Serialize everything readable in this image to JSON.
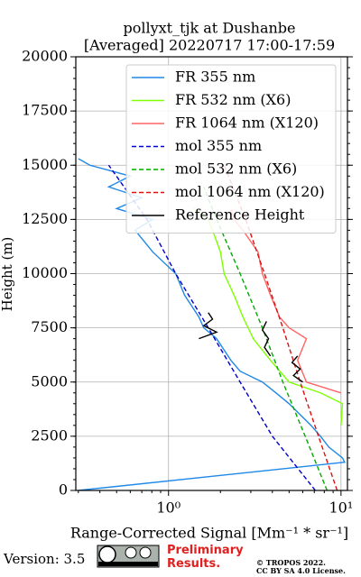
{
  "chart_data": {
    "type": "line",
    "title": "pollyxt_tjk at Dushanbe",
    "subtitle": "[Averaged] 20220717 17:00-17:59",
    "x_label": "Range-Corrected Signal [Mm⁻¹ * sr⁻¹]",
    "y_label": "Height (m)",
    "xlim": [
      0.29,
      10.9
    ],
    "ylim": [
      0,
      20000
    ],
    "log_x": true,
    "grid": true,
    "legend": "upper right",
    "xticks": [
      {
        "value": 1,
        "label": "10⁰"
      },
      {
        "value": 10,
        "label": "10¹"
      }
    ],
    "yticks": [
      0,
      2500,
      5000,
      7500,
      10000,
      12500,
      15000,
      17500,
      20000
    ],
    "series": [
      {
        "name": "FR 355 nm",
        "color": "#1f88e8",
        "linestyle": "solid",
        "x": [
          0.3,
          10.5,
          10.2,
          8.5,
          7.6,
          6.7,
          5.0,
          4.2,
          3.5,
          2.6,
          2.3,
          1.9,
          1.6,
          1.5,
          1.24,
          1.1,
          0.81,
          0.64,
          0.81,
          0.5,
          0.7,
          0.45,
          0.6,
          0.35,
          0.3
        ],
        "y": [
          0,
          1300,
          1500,
          2000,
          2500,
          3000,
          4000,
          4500,
          5000,
          5500,
          6000,
          7000,
          7500,
          8000,
          9000,
          10000,
          11000,
          12000,
          12500,
          13000,
          13500,
          14000,
          14500,
          15000,
          15300
        ]
      },
      {
        "name": "FR 532 nm (X6)",
        "color": "#7fff00",
        "linestyle": "solid",
        "x": [
          10.0,
          10.2,
          7.6,
          5.0,
          3.9,
          3.1,
          2.7,
          2.4,
          2.1,
          2.0,
          1.8,
          1.7,
          1.4
        ],
        "y": [
          3000,
          4000,
          4500,
          5000,
          6000,
          7000,
          8000,
          9000,
          10000,
          11000,
          12000,
          12500,
          13000
        ]
      },
      {
        "name": "FR 1064 nm (X120)",
        "color": "#ff6464",
        "linestyle": "solid",
        "x": [
          10.0,
          6.3,
          5.6,
          6.3,
          5.0,
          4.4,
          3.9,
          3.5,
          3.3,
          2.7,
          2.4,
          2.3
        ],
        "y": [
          4500,
          5000,
          6000,
          7000,
          7500,
          8000,
          9000,
          10000,
          11000,
          12000,
          12500,
          13000
        ]
      },
      {
        "name": "mol 355 nm",
        "color": "#0000cc",
        "linestyle": "dashed",
        "x": [
          7.1,
          4.0,
          2.6,
          1.7,
          1.1,
          0.75,
          0.45
        ],
        "y": [
          0,
          2500,
          5000,
          7500,
          10000,
          12500,
          15000
        ]
      },
      {
        "name": "mol 532 nm (X6)",
        "color": "#00aa00",
        "linestyle": "dashed",
        "x": [
          8.3,
          6.2,
          4.6,
          3.5,
          2.6,
          1.9,
          1.6
        ],
        "y": [
          0,
          2500,
          5000,
          7500,
          10000,
          12500,
          14000
        ]
      },
      {
        "name": "mol 1064 nm (X120)",
        "color": "#dd1111",
        "linestyle": "dashed",
        "x": [
          9.5,
          7.4,
          5.8,
          4.6,
          3.6,
          2.8,
          2.1
        ],
        "y": [
          0,
          2500,
          5000,
          7500,
          10000,
          12500,
          15000
        ]
      },
      {
        "name": "Reference Height",
        "color": "#000000",
        "linestyle": "solid",
        "x": [
          1.5,
          1.9,
          1.6,
          1.8,
          1.7,
          null,
          3.9,
          3.6,
          3.8,
          3.5,
          3.7,
          null,
          6.0,
          5.3,
          5.8,
          5.2,
          5.6
        ],
        "y": [
          7000,
          7300,
          7600,
          7900,
          8200,
          null,
          6200,
          6600,
          7000,
          7400,
          7800,
          null,
          5000,
          5300,
          5600,
          5900,
          6200
        ]
      }
    ]
  },
  "footer": {
    "version": "Version: 3.5",
    "notice": "Preliminary Results.",
    "copyright": "© TROPOS 2022.",
    "license": "CC BY SA 4.0 License."
  }
}
